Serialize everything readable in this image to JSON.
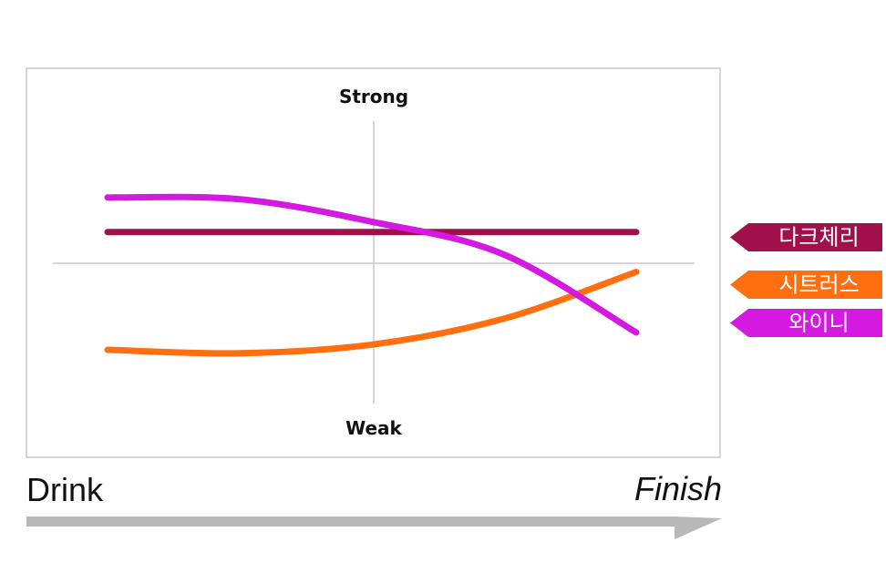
{
  "chart_data": {
    "type": "line",
    "y_top_label": "Strong",
    "y_bottom_label": "Weak",
    "x_start_label": "Drink",
    "x_end_label": "Finish",
    "ylim": [
      -1,
      1
    ],
    "grid": false,
    "legend_position": "right",
    "series": [
      {
        "name": "다크체리",
        "color": "#a0104a",
        "points": [
          [
            0.0,
            0.18
          ],
          [
            0.25,
            0.18
          ],
          [
            0.5,
            0.18
          ],
          [
            0.75,
            0.18
          ],
          [
            1.0,
            0.18
          ]
        ]
      },
      {
        "name": "시트러스",
        "color": "#ff6f0f",
        "points": [
          [
            0.0,
            -0.5
          ],
          [
            0.25,
            -0.52
          ],
          [
            0.5,
            -0.47
          ],
          [
            0.75,
            -0.32
          ],
          [
            1.0,
            -0.05
          ]
        ]
      },
      {
        "name": "와이니",
        "color": "#d419e0",
        "points": [
          [
            0.0,
            0.38
          ],
          [
            0.25,
            0.37
          ],
          [
            0.5,
            0.24
          ],
          [
            0.75,
            0.05
          ],
          [
            1.0,
            -0.4
          ]
        ]
      }
    ]
  }
}
